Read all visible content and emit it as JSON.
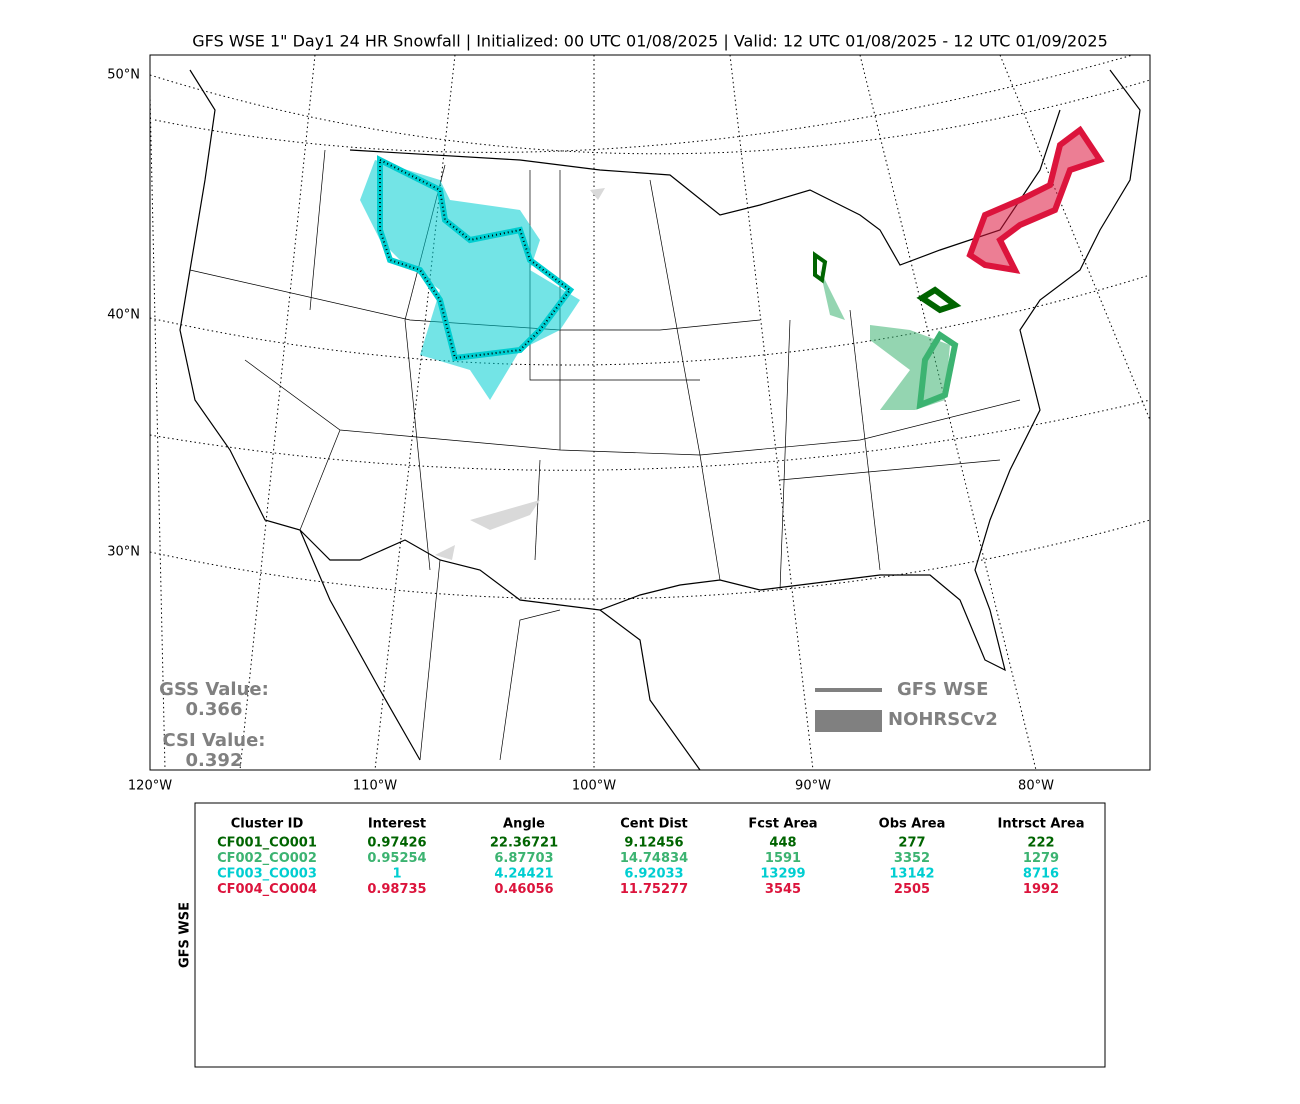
{
  "title": "GFS WSE 1\" Day1 24 HR Snowfall | Initialized: 00 UTC 01/08/2025 | Valid: 12 UTC 01/08/2025 - 12 UTC 01/09/2025",
  "map": {
    "lat_labels": [
      "50°N",
      "40°N",
      "30°N"
    ],
    "lon_labels": [
      "120°W",
      "110°W",
      "100°W",
      "90°W",
      "80°W"
    ],
    "scores": {
      "gss_label": "GSS Value:",
      "gss_value": "0.366",
      "csi_label": "CSI Value:",
      "csi_value": "0.392"
    },
    "legend": [
      "GFS WSE",
      "NOHRSCv2"
    ]
  },
  "table": {
    "side_label": "GFS WSE",
    "header": [
      "Cluster ID",
      "Interest",
      "Angle",
      "Cent Dist",
      "Fcst Area",
      "Obs Area",
      "Intrsct Area"
    ],
    "rows": [
      [
        "CF001_CO001",
        "0.97426",
        "22.36721",
        "9.12456",
        "448",
        "277",
        "222"
      ],
      [
        "CF002_CO002",
        "0.95254",
        "6.87703",
        "14.74834",
        "1591",
        "3352",
        "1279"
      ],
      [
        "CF003_CO003",
        "1",
        "4.24421",
        "6.92033",
        "13299",
        "13142",
        "8716"
      ],
      [
        "CF004_CO004",
        "0.98735",
        "0.46056",
        "11.75277",
        "3545",
        "2505",
        "1992"
      ]
    ]
  }
}
